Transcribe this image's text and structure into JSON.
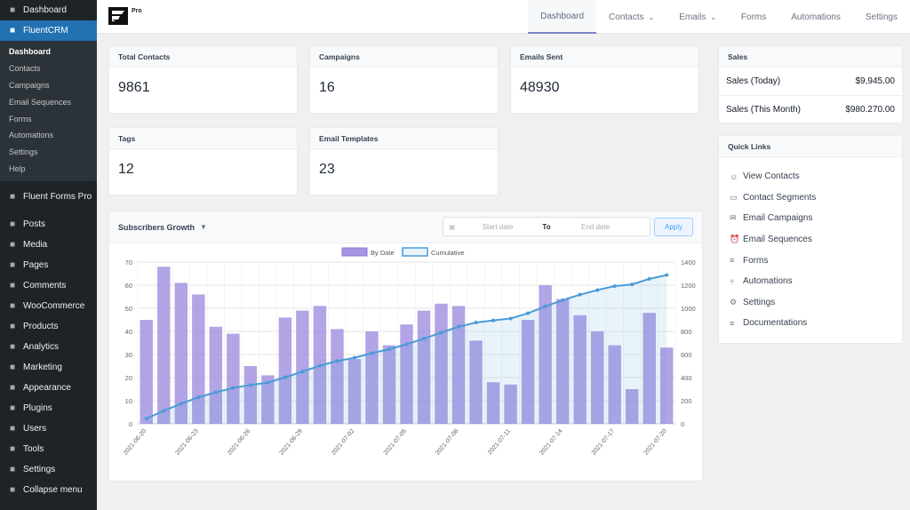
{
  "sidebar": {
    "top": [
      {
        "label": "Dashboard",
        "icon": "dashboard-icon"
      },
      {
        "label": "FluentCRM",
        "icon": "fluentcrm-icon",
        "active": true
      }
    ],
    "submenu": [
      "Dashboard",
      "Contacts",
      "Campaigns",
      "Email Sequences",
      "Forms",
      "Automations",
      "Settings",
      "Help"
    ],
    "items": [
      {
        "label": "Fluent Forms Pro",
        "icon": "forms-icon"
      },
      {
        "label": "Posts",
        "icon": "pin-icon"
      },
      {
        "label": "Media",
        "icon": "media-icon"
      },
      {
        "label": "Pages",
        "icon": "pages-icon"
      },
      {
        "label": "Comments",
        "icon": "comments-icon"
      },
      {
        "label": "WooCommerce",
        "icon": "woocommerce-icon"
      },
      {
        "label": "Products",
        "icon": "products-icon"
      },
      {
        "label": "Analytics",
        "icon": "analytics-icon"
      },
      {
        "label": "Marketing",
        "icon": "marketing-icon"
      },
      {
        "label": "Appearance",
        "icon": "appearance-icon"
      },
      {
        "label": "Plugins",
        "icon": "plugins-icon"
      },
      {
        "label": "Users",
        "icon": "users-icon"
      },
      {
        "label": "Tools",
        "icon": "tools-icon"
      },
      {
        "label": "Settings",
        "icon": "settings-icon"
      },
      {
        "label": "Collapse menu",
        "icon": "collapse-icon"
      }
    ]
  },
  "topbar": {
    "pro_label": "Pro",
    "nav": [
      {
        "label": "Dashboard",
        "active": true,
        "dropdown": false
      },
      {
        "label": "Contacts",
        "dropdown": true
      },
      {
        "label": "Emails",
        "dropdown": true
      },
      {
        "label": "Forms",
        "dropdown": false
      },
      {
        "label": "Automations",
        "dropdown": false
      },
      {
        "label": "Settings",
        "dropdown": false
      }
    ]
  },
  "stats": {
    "total_contacts": {
      "label": "Total Contacts",
      "value": "9861"
    },
    "campaigns": {
      "label": "Campaigns",
      "value": "16"
    },
    "emails_sent": {
      "label": "Emails Sent",
      "value": "48930"
    },
    "tags": {
      "label": "Tags",
      "value": "12"
    },
    "email_templates": {
      "label": "Email Templates",
      "value": "23"
    }
  },
  "sales": {
    "title": "Sales",
    "rows": [
      {
        "label": "Sales (Today)",
        "value": "$9,945.00"
      },
      {
        "label": "Sales (This Month)",
        "value": "$980.270.00"
      }
    ]
  },
  "quick_links": {
    "title": "Quick Links",
    "items": [
      {
        "label": "View Contacts",
        "icon": "user-icon"
      },
      {
        "label": "Contact Segments",
        "icon": "folder-icon"
      },
      {
        "label": "Email Campaigns",
        "icon": "mail-icon"
      },
      {
        "label": "Email Sequences",
        "icon": "alarm-icon"
      },
      {
        "label": "Forms",
        "icon": "document-icon"
      },
      {
        "label": "Automations",
        "icon": "flow-icon"
      },
      {
        "label": "Settings",
        "icon": "gear-icon"
      },
      {
        "label": "Documentations",
        "icon": "document-icon"
      }
    ]
  },
  "subscribers": {
    "title": "Subscribers Growth",
    "start_placeholder": "Start date",
    "to_label": "To",
    "end_placeholder": "End date",
    "apply_label": "Apply"
  },
  "chart_data": {
    "type": "bar",
    "legend_position": "top",
    "categories": [
      "2021-06-20",
      "2021-06-21",
      "2021-06-22",
      "2021-06-23",
      "2021-06-24",
      "2021-06-25",
      "2021-06-26",
      "2021-06-27",
      "2021-06-28",
      "2021-06-29",
      "2021-06-30",
      "2021-07-01",
      "2021-07-02",
      "2021-07-03",
      "2021-07-04",
      "2021-07-05",
      "2021-07-06",
      "2021-07-07",
      "2021-07-08",
      "2021-07-09",
      "2021-07-10",
      "2021-07-11",
      "2021-07-12",
      "2021-07-13",
      "2021-07-14",
      "2021-07-15",
      "2021-07-16",
      "2021-07-17",
      "2021-07-18",
      "2021-07-19",
      "2021-07-20"
    ],
    "tick_labels": [
      "2021-06-20",
      "2021-06-23",
      "2021-06-26",
      "2021-06-29",
      "2021-07-02",
      "2021-07-05",
      "2021-07-08",
      "2021-07-11",
      "2021-07-14",
      "2021-07-17",
      "2021-07-20"
    ],
    "series": [
      {
        "name": "By Date",
        "type": "bar",
        "axis": "left",
        "color": "#a594e0",
        "values": [
          45,
          68,
          61,
          56,
          42,
          39,
          25,
          21,
          46,
          49,
          51,
          41,
          28,
          40,
          34,
          43,
          49,
          52,
          51,
          36,
          18,
          17,
          45,
          60,
          54,
          47,
          40,
          34,
          15,
          48,
          33
        ]
      },
      {
        "name": "Cumulative",
        "type": "area-line",
        "axis": "right",
        "color": "#4a9bd6",
        "values": [
          45,
          113,
          174,
          230,
          272,
          311,
          336,
          357,
          403,
          452,
          503,
          544,
          572,
          612,
          646,
          689,
          738,
          790,
          841,
          877,
          895,
          912,
          957,
          1017,
          1071,
          1118,
          1158,
          1192,
          1207,
          1255,
          1288
        ]
      }
    ],
    "y_left": {
      "min": 0,
      "max": 70,
      "ticks": [
        0,
        10,
        20,
        30,
        40,
        50,
        60,
        70
      ]
    },
    "y_right": {
      "min": 0,
      "max": 1400,
      "ticks": [
        0,
        200,
        400,
        600,
        800,
        1000,
        1200,
        1400
      ]
    },
    "grid": true
  }
}
